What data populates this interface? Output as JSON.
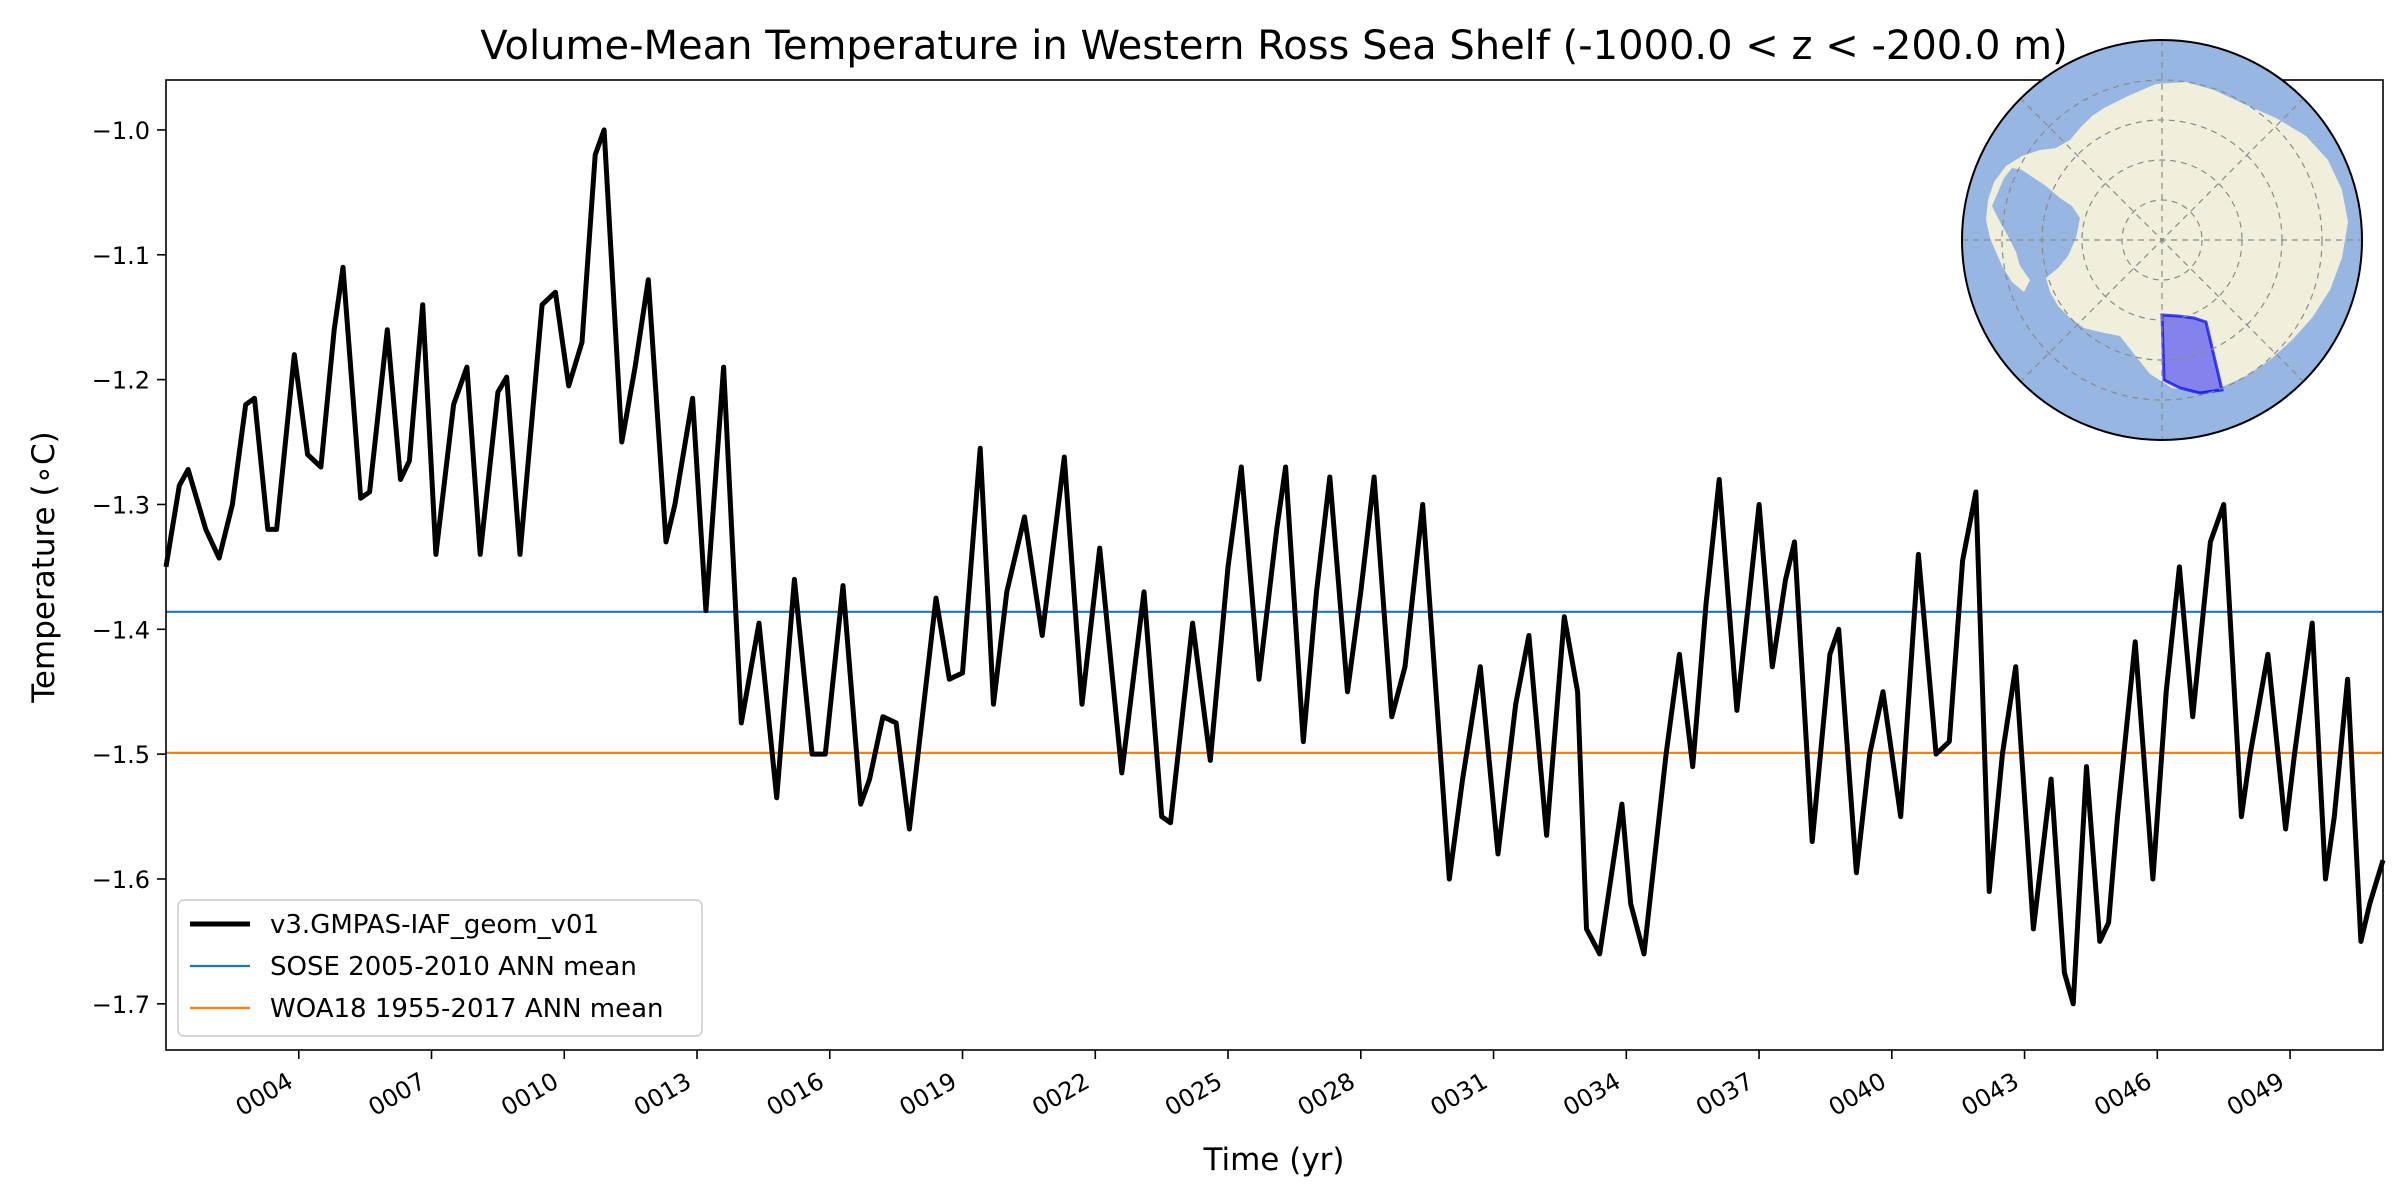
{
  "chart_data": {
    "type": "line",
    "title": "Volume-Mean Temperature in Western Ross Sea Shelf (-1000.0 < z < -200.0 m)",
    "xlabel": "Time (yr)",
    "ylabel": "Temperature (∘C)",
    "xlim": [
      1.0,
      51.1
    ],
    "ylim": [
      -1.737,
      -0.96
    ],
    "yticks": [
      -1.0,
      -1.1,
      -1.2,
      -1.3,
      -1.4,
      -1.5,
      -1.6,
      -1.7
    ],
    "ytick_labels": [
      "−1.0",
      "−1.1",
      "−1.2",
      "−1.3",
      "−1.4",
      "−1.5",
      "−1.6",
      "−1.7"
    ],
    "xticks": [
      4,
      7,
      10,
      13,
      16,
      19,
      22,
      25,
      28,
      31,
      34,
      37,
      40,
      43,
      46,
      49
    ],
    "xtick_labels": [
      "0004",
      "0007",
      "0010",
      "0013",
      "0016",
      "0019",
      "0022",
      "0025",
      "0028",
      "0031",
      "0034",
      "0037",
      "0040",
      "0043",
      "0046",
      "0049"
    ],
    "grid": false,
    "legend_position": "lower-left",
    "series": [
      {
        "name": "v3.GMPAS-IAF_geom_v01",
        "color": "#000000",
        "points": [
          [
            1.0,
            -1.35
          ],
          [
            1.3,
            -1.285
          ],
          [
            1.5,
            -1.272
          ],
          [
            1.9,
            -1.32
          ],
          [
            2.2,
            -1.343
          ],
          [
            2.5,
            -1.3
          ],
          [
            2.8,
            -1.22
          ],
          [
            3.0,
            -1.215
          ],
          [
            3.3,
            -1.32
          ],
          [
            3.5,
            -1.32
          ],
          [
            3.9,
            -1.18
          ],
          [
            4.2,
            -1.26
          ],
          [
            4.5,
            -1.27
          ],
          [
            4.8,
            -1.16
          ],
          [
            5.0,
            -1.11
          ],
          [
            5.4,
            -1.295
          ],
          [
            5.6,
            -1.29
          ],
          [
            6.0,
            -1.16
          ],
          [
            6.3,
            -1.28
          ],
          [
            6.5,
            -1.265
          ],
          [
            6.8,
            -1.14
          ],
          [
            7.1,
            -1.34
          ],
          [
            7.5,
            -1.22
          ],
          [
            7.8,
            -1.19
          ],
          [
            8.1,
            -1.34
          ],
          [
            8.5,
            -1.21
          ],
          [
            8.7,
            -1.198
          ],
          [
            9.0,
            -1.34
          ],
          [
            9.5,
            -1.14
          ],
          [
            9.8,
            -1.13
          ],
          [
            10.1,
            -1.205
          ],
          [
            10.4,
            -1.17
          ],
          [
            10.7,
            -1.02
          ],
          [
            10.9,
            -1.0
          ],
          [
            11.3,
            -1.25
          ],
          [
            11.6,
            -1.19
          ],
          [
            11.9,
            -1.12
          ],
          [
            12.3,
            -1.33
          ],
          [
            12.5,
            -1.3
          ],
          [
            12.9,
            -1.215
          ],
          [
            13.2,
            -1.385
          ],
          [
            13.6,
            -1.19
          ],
          [
            14.0,
            -1.475
          ],
          [
            14.4,
            -1.395
          ],
          [
            14.8,
            -1.535
          ],
          [
            15.2,
            -1.36
          ],
          [
            15.6,
            -1.5
          ],
          [
            15.9,
            -1.5
          ],
          [
            16.3,
            -1.365
          ],
          [
            16.7,
            -1.54
          ],
          [
            16.9,
            -1.52
          ],
          [
            17.2,
            -1.47
          ],
          [
            17.5,
            -1.475
          ],
          [
            17.8,
            -1.56
          ],
          [
            18.4,
            -1.375
          ],
          [
            18.7,
            -1.44
          ],
          [
            19.0,
            -1.435
          ],
          [
            19.4,
            -1.255
          ],
          [
            19.7,
            -1.46
          ],
          [
            20.0,
            -1.37
          ],
          [
            20.4,
            -1.31
          ],
          [
            20.8,
            -1.405
          ],
          [
            21.3,
            -1.262
          ],
          [
            21.7,
            -1.46
          ],
          [
            22.1,
            -1.335
          ],
          [
            22.6,
            -1.515
          ],
          [
            23.1,
            -1.37
          ],
          [
            23.5,
            -1.55
          ],
          [
            23.7,
            -1.555
          ],
          [
            24.2,
            -1.395
          ],
          [
            24.6,
            -1.505
          ],
          [
            25.0,
            -1.35
          ],
          [
            25.3,
            -1.27
          ],
          [
            25.7,
            -1.44
          ],
          [
            26.1,
            -1.32
          ],
          [
            26.3,
            -1.27
          ],
          [
            26.7,
            -1.49
          ],
          [
            27.0,
            -1.37
          ],
          [
            27.3,
            -1.278
          ],
          [
            27.7,
            -1.45
          ],
          [
            28.0,
            -1.37
          ],
          [
            28.3,
            -1.278
          ],
          [
            28.7,
            -1.47
          ],
          [
            29.0,
            -1.43
          ],
          [
            29.4,
            -1.3
          ],
          [
            30.0,
            -1.6
          ],
          [
            30.3,
            -1.52
          ],
          [
            30.7,
            -1.43
          ],
          [
            31.1,
            -1.58
          ],
          [
            31.5,
            -1.46
          ],
          [
            31.8,
            -1.405
          ],
          [
            32.2,
            -1.565
          ],
          [
            32.6,
            -1.39
          ],
          [
            32.9,
            -1.45
          ],
          [
            33.1,
            -1.64
          ],
          [
            33.4,
            -1.66
          ],
          [
            33.9,
            -1.54
          ],
          [
            34.1,
            -1.62
          ],
          [
            34.4,
            -1.66
          ],
          [
            34.9,
            -1.5
          ],
          [
            35.2,
            -1.42
          ],
          [
            35.5,
            -1.51
          ],
          [
            35.8,
            -1.38
          ],
          [
            36.1,
            -1.28
          ],
          [
            36.5,
            -1.465
          ],
          [
            37.0,
            -1.3
          ],
          [
            37.3,
            -1.43
          ],
          [
            37.6,
            -1.36
          ],
          [
            37.8,
            -1.33
          ],
          [
            38.2,
            -1.57
          ],
          [
            38.6,
            -1.42
          ],
          [
            38.8,
            -1.4
          ],
          [
            39.2,
            -1.595
          ],
          [
            39.5,
            -1.5
          ],
          [
            39.8,
            -1.45
          ],
          [
            40.2,
            -1.55
          ],
          [
            40.6,
            -1.34
          ],
          [
            41.0,
            -1.5
          ],
          [
            41.3,
            -1.49
          ],
          [
            41.6,
            -1.345
          ],
          [
            41.9,
            -1.29
          ],
          [
            42.2,
            -1.61
          ],
          [
            42.5,
            -1.5
          ],
          [
            42.8,
            -1.43
          ],
          [
            43.2,
            -1.64
          ],
          [
            43.6,
            -1.52
          ],
          [
            43.9,
            -1.675
          ],
          [
            44.1,
            -1.7
          ],
          [
            44.4,
            -1.51
          ],
          [
            44.7,
            -1.65
          ],
          [
            44.9,
            -1.635
          ],
          [
            45.1,
            -1.55
          ],
          [
            45.5,
            -1.41
          ],
          [
            45.9,
            -1.6
          ],
          [
            46.2,
            -1.45
          ],
          [
            46.5,
            -1.35
          ],
          [
            46.8,
            -1.47
          ],
          [
            47.2,
            -1.33
          ],
          [
            47.5,
            -1.3
          ],
          [
            47.9,
            -1.55
          ],
          [
            48.1,
            -1.5
          ],
          [
            48.5,
            -1.42
          ],
          [
            48.9,
            -1.56
          ],
          [
            49.1,
            -1.5
          ],
          [
            49.5,
            -1.395
          ],
          [
            49.8,
            -1.6
          ],
          [
            50.0,
            -1.55
          ],
          [
            50.3,
            -1.44
          ],
          [
            50.6,
            -1.65
          ],
          [
            50.8,
            -1.62
          ],
          [
            51.1,
            -1.585
          ]
        ]
      },
      {
        "name": "SOSE 2005-2010 ANN mean",
        "color": "#1f77b4",
        "value": -1.386
      },
      {
        "name": "WOA18 1955-2017 ANN mean",
        "color": "#ff7f0e",
        "value": -1.499
      }
    ]
  },
  "inset_map": {
    "description_icon": "antarctica-polar-map-icon",
    "ocean_color": "#97b6e1",
    "land_color": "#efefdb",
    "region_color": "#0000ff"
  }
}
